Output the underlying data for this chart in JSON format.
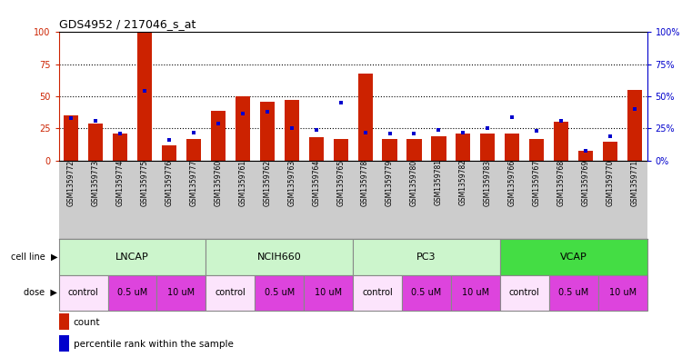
{
  "title": "GDS4952 / 217046_s_at",
  "samples": [
    "GSM1359772",
    "GSM1359773",
    "GSM1359774",
    "GSM1359775",
    "GSM1359776",
    "GSM1359777",
    "GSM1359760",
    "GSM1359761",
    "GSM1359762",
    "GSM1359763",
    "GSM1359764",
    "GSM1359765",
    "GSM1359778",
    "GSM1359779",
    "GSM1359780",
    "GSM1359781",
    "GSM1359782",
    "GSM1359783",
    "GSM1359766",
    "GSM1359767",
    "GSM1359768",
    "GSM1359769",
    "GSM1359770",
    "GSM1359771"
  ],
  "counts": [
    35,
    29,
    21,
    100,
    12,
    17,
    39,
    50,
    46,
    47,
    18,
    17,
    68,
    17,
    17,
    19,
    21,
    21,
    21,
    17,
    30,
    8,
    15,
    55
  ],
  "percentiles": [
    33,
    31,
    21,
    54,
    16,
    22,
    29,
    37,
    38,
    25,
    24,
    45,
    22,
    21,
    21,
    24,
    22,
    25,
    34,
    23,
    31,
    8,
    19,
    40
  ],
  "cell_line_names": [
    "LNCAP",
    "NCIH660",
    "PC3",
    "VCAP"
  ],
  "cell_line_ranges": [
    [
      0,
      6
    ],
    [
      6,
      12
    ],
    [
      12,
      18
    ],
    [
      18,
      24
    ]
  ],
  "cell_line_colors": [
    "#ccf5cc",
    "#ccf5cc",
    "#ccf5cc",
    "#44dd44"
  ],
  "dose_names": [
    "control",
    "0.5 uM",
    "10 uM",
    "control",
    "0.5 uM",
    "10 uM",
    "control",
    "0.5 uM",
    "10 uM",
    "control",
    "0.5 uM",
    "10 uM"
  ],
  "dose_ranges": [
    [
      0,
      2
    ],
    [
      2,
      4
    ],
    [
      4,
      6
    ],
    [
      6,
      8
    ],
    [
      8,
      10
    ],
    [
      10,
      12
    ],
    [
      12,
      14
    ],
    [
      14,
      16
    ],
    [
      16,
      18
    ],
    [
      18,
      20
    ],
    [
      20,
      22
    ],
    [
      22,
      24
    ]
  ],
  "dose_colors": [
    "#fce4fc",
    "#dd44dd",
    "#dd44dd",
    "#fce4fc",
    "#dd44dd",
    "#dd44dd",
    "#fce4fc",
    "#dd44dd",
    "#dd44dd",
    "#fce4fc",
    "#dd44dd",
    "#dd44dd"
  ],
  "bar_color": "#cc2200",
  "percentile_color": "#0000cc",
  "ylim": [
    0,
    100
  ],
  "yticks": [
    0,
    25,
    50,
    75,
    100
  ],
  "hlines": [
    25,
    50,
    75
  ],
  "xtick_bg_color": "#cccccc",
  "cell_line_label": "cell line",
  "dose_label": "dose"
}
